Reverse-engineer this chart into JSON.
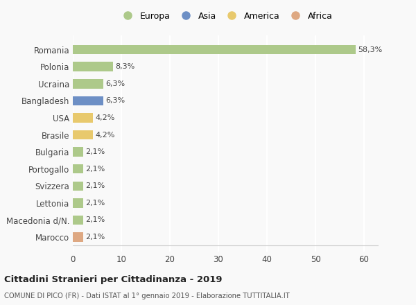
{
  "categories": [
    "Romania",
    "Polonia",
    "Ucraina",
    "Bangladesh",
    "USA",
    "Brasile",
    "Bulgaria",
    "Portogallo",
    "Svizzera",
    "Lettonia",
    "Macedonia d/N.",
    "Marocco"
  ],
  "values": [
    58.3,
    8.3,
    6.3,
    6.3,
    4.2,
    4.2,
    2.1,
    2.1,
    2.1,
    2.1,
    2.1,
    2.1
  ],
  "labels": [
    "58,3%",
    "8,3%",
    "6,3%",
    "6,3%",
    "4,2%",
    "4,2%",
    "2,1%",
    "2,1%",
    "2,1%",
    "2,1%",
    "2,1%",
    "2,1%"
  ],
  "colors": [
    "#adc98a",
    "#adc98a",
    "#adc98a",
    "#6d8fc5",
    "#e8c96d",
    "#e8c96d",
    "#adc98a",
    "#adc98a",
    "#adc98a",
    "#adc98a",
    "#adc98a",
    "#dea882"
  ],
  "legend_labels": [
    "Europa",
    "Asia",
    "America",
    "Africa"
  ],
  "legend_colors": [
    "#adc98a",
    "#6d8fc5",
    "#e8c96d",
    "#dea882"
  ],
  "title": "Cittadini Stranieri per Cittadinanza - 2019",
  "subtitle": "COMUNE DI PICO (FR) - Dati ISTAT al 1° gennaio 2019 - Elaborazione TUTTITALIA.IT",
  "xlim": [
    0,
    63
  ],
  "xticks": [
    0,
    10,
    20,
    30,
    40,
    50,
    60
  ],
  "background_color": "#f9f9f9",
  "grid_color": "#ffffff",
  "bar_height": 0.55
}
